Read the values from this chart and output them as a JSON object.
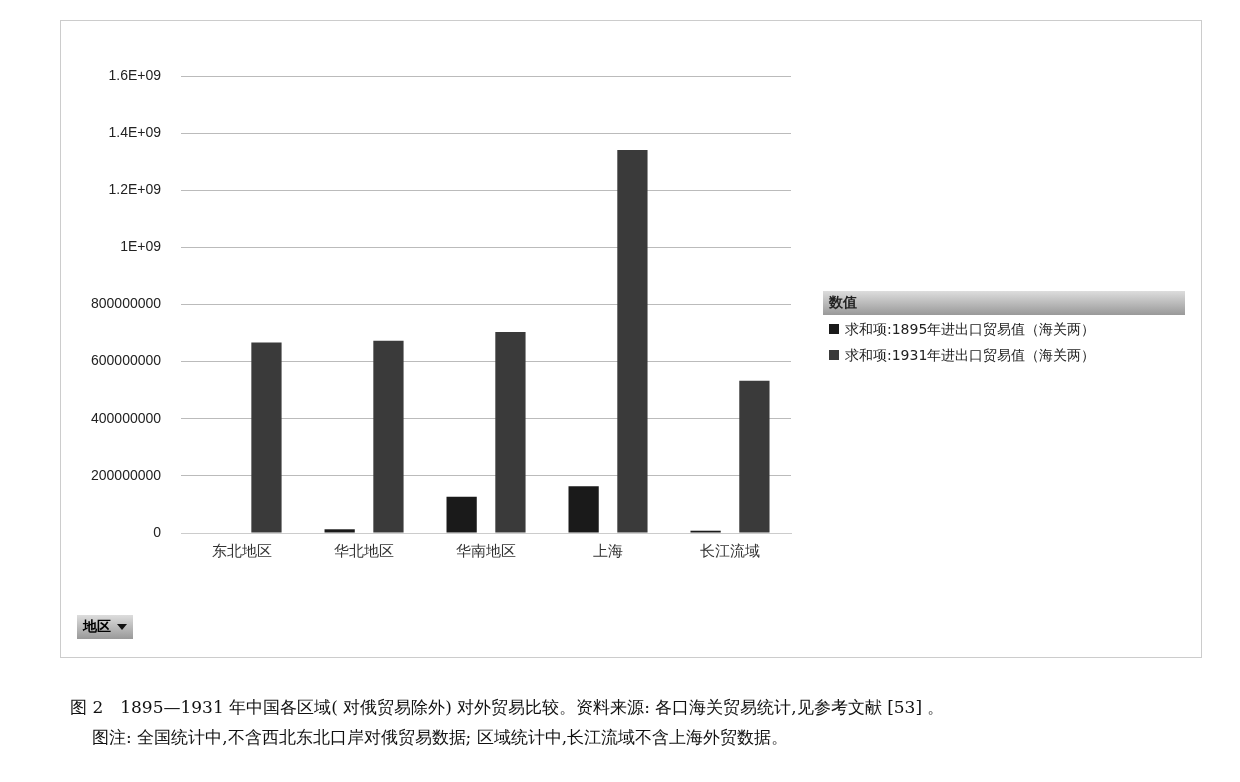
{
  "chart_data": {
    "type": "bar",
    "categories": [
      "东北地区",
      "华北地区",
      "华南地区",
      "上海",
      "长江流域"
    ],
    "series": [
      {
        "name": "求和项:1895年进出口贸易值（海关两）",
        "color": "#1a1a1a",
        "values": [
          0,
          13000000,
          127000000,
          164000000,
          8000000
        ]
      },
      {
        "name": "求和项:1931年进出口贸易值（海关两）",
        "color": "#3a3a3a",
        "values": [
          667000000,
          673000000,
          704000000,
          1341000000,
          533000000
        ]
      }
    ],
    "ylim": [
      0,
      1600000000
    ],
    "yticks": [
      0,
      {
        "value": 200000000,
        "label": "200000000"
      },
      {
        "value": 400000000,
        "label": "400000000"
      },
      {
        "value": 600000000,
        "label": "600000000"
      },
      {
        "value": 800000000,
        "label": "800000000"
      },
      {
        "value": 1000000000,
        "label": "1E+09"
      },
      {
        "value": 1200000000,
        "label": "1.2E+09"
      },
      {
        "value": 1400000000,
        "label": "1.4E+09"
      },
      {
        "value": 1600000000,
        "label": "1.6E+09"
      }
    ],
    "grid": "y",
    "legend": "right",
    "legend_title": "数值",
    "xlabel": "地区",
    "annotations": [
      "图 2　1895—1931 年中国各区域( 对俄贸易除外) 对外贸易比较。资料来源: 各口海关贸易统计,见参考文献 [53] 。",
      "图注: 全国统计中,不含西北东北口岸对俄贸易数据; 区域统计中,长江流域不含上海外贸数据。"
    ]
  }
}
